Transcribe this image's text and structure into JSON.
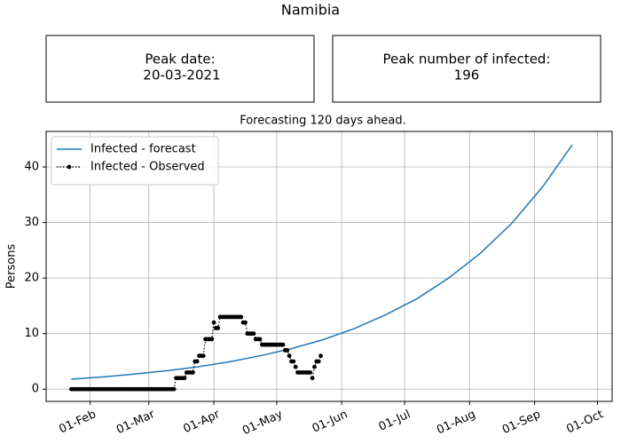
{
  "title": "Namibia",
  "info_boxes": [
    {
      "label": "Peak date:",
      "value": "20-03-2021"
    },
    {
      "label": "Peak number of infected:",
      "value": 196
    }
  ],
  "chart_data": {
    "type": "line",
    "title": "Forecasting 120 days ahead.",
    "ylabel": "Persons",
    "xlim": [
      "11-Jan",
      "08-Oct"
    ],
    "xticks": [
      "01-Feb",
      "01-Mar",
      "01-Apr",
      "01-May",
      "01-Jun",
      "01-Jul",
      "01-Aug",
      "01-Sep",
      "01-Oct"
    ],
    "ylim": [
      -2.2,
      46.4
    ],
    "yticks": [
      0,
      10,
      20,
      30,
      40
    ],
    "grid": true,
    "legend": "upper left",
    "series": [
      {
        "name": "Infected - forecast",
        "color": "#1f77b4",
        "linestyle": "solid",
        "x": [
          "23-Jan",
          "07-Feb",
          "22-Feb",
          "09-Mar",
          "24-Mar",
          "08-Apr",
          "23-Apr",
          "08-May",
          "23-May",
          "07-Jun",
          "22-Jun",
          "07-Jul",
          "22-Jul",
          "06-Aug",
          "21-Aug",
          "05-Sep",
          "19-Sep"
        ],
        "values": [
          1.8,
          2.2,
          2.7,
          3.3,
          4.0,
          4.9,
          6.0,
          7.3,
          8.9,
          10.9,
          13.4,
          16.3,
          20.0,
          24.4,
          29.8,
          36.5,
          44
        ]
      },
      {
        "name": "Infected - Observed",
        "color": "#000000",
        "linestyle": "dotted",
        "marker": "circle",
        "x": [
          "23-Jan",
          "24-Jan",
          "25-Jan",
          "26-Jan",
          "27-Jan",
          "28-Jan",
          "29-Jan",
          "30-Jan",
          "31-Jan",
          "01-Feb",
          "02-Feb",
          "03-Feb",
          "04-Feb",
          "05-Feb",
          "06-Feb",
          "07-Feb",
          "08-Feb",
          "09-Feb",
          "10-Feb",
          "11-Feb",
          "12-Feb",
          "13-Feb",
          "14-Feb",
          "15-Feb",
          "16-Feb",
          "17-Feb",
          "18-Feb",
          "19-Feb",
          "20-Feb",
          "21-Feb",
          "22-Feb",
          "23-Feb",
          "24-Feb",
          "25-Feb",
          "26-Feb",
          "27-Feb",
          "28-Feb",
          "01-Mar",
          "02-Mar",
          "03-Mar",
          "04-Mar",
          "05-Mar",
          "06-Mar",
          "07-Mar",
          "08-Mar",
          "09-Mar",
          "10-Mar",
          "11-Mar",
          "12-Mar",
          "13-Mar",
          "14-Mar",
          "15-Mar",
          "16-Mar",
          "17-Mar",
          "18-Mar",
          "19-Mar",
          "20-Mar",
          "21-Mar",
          "22-Mar",
          "23-Mar",
          "24-Mar",
          "25-Mar",
          "26-Mar",
          "27-Mar",
          "28-Mar",
          "29-Mar",
          "30-Mar",
          "31-Mar",
          "01-Apr",
          "02-Apr",
          "03-Apr",
          "04-Apr",
          "05-Apr",
          "06-Apr",
          "07-Apr",
          "08-Apr",
          "09-Apr",
          "10-Apr",
          "11-Apr",
          "12-Apr",
          "13-Apr",
          "14-Apr",
          "15-Apr",
          "16-Apr",
          "17-Apr",
          "18-Apr",
          "19-Apr",
          "20-Apr",
          "21-Apr",
          "22-Apr",
          "23-Apr",
          "24-Apr",
          "25-Apr",
          "26-Apr",
          "27-Apr",
          "28-Apr",
          "29-Apr",
          "30-Apr",
          "01-May",
          "02-May",
          "03-May",
          "04-May",
          "05-May",
          "06-May",
          "07-May",
          "08-May",
          "09-May",
          "10-May",
          "11-May",
          "12-May",
          "13-May",
          "14-May",
          "15-May",
          "16-May",
          "17-May",
          "18-May",
          "19-May",
          "20-May",
          "21-May",
          "22-May"
        ],
        "values": [
          0,
          0,
          0,
          0,
          0,
          0,
          0,
          0,
          0,
          0,
          0,
          0,
          0,
          0,
          0,
          0,
          0,
          0,
          0,
          0,
          0,
          0,
          0,
          0,
          0,
          0,
          0,
          0,
          0,
          0,
          0,
          0,
          0,
          0,
          0,
          0,
          0,
          0,
          0,
          0,
          0,
          0,
          0,
          0,
          0,
          0,
          0,
          0,
          0,
          0,
          2,
          2,
          2,
          2,
          2,
          3,
          3,
          3,
          3,
          5,
          5,
          6,
          6,
          6,
          9,
          9,
          9,
          9,
          12,
          11,
          11,
          13,
          13,
          13,
          13,
          13,
          13,
          13,
          13,
          13,
          13,
          13,
          12,
          12,
          10,
          10,
          10,
          10,
          9,
          9,
          9,
          8,
          8,
          8,
          8,
          8,
          8,
          8,
          8,
          8,
          8,
          8,
          7,
          7,
          6,
          5,
          5,
          4,
          3,
          3,
          3,
          3,
          3,
          3,
          3,
          2,
          4,
          5,
          5,
          6
        ]
      }
    ]
  }
}
